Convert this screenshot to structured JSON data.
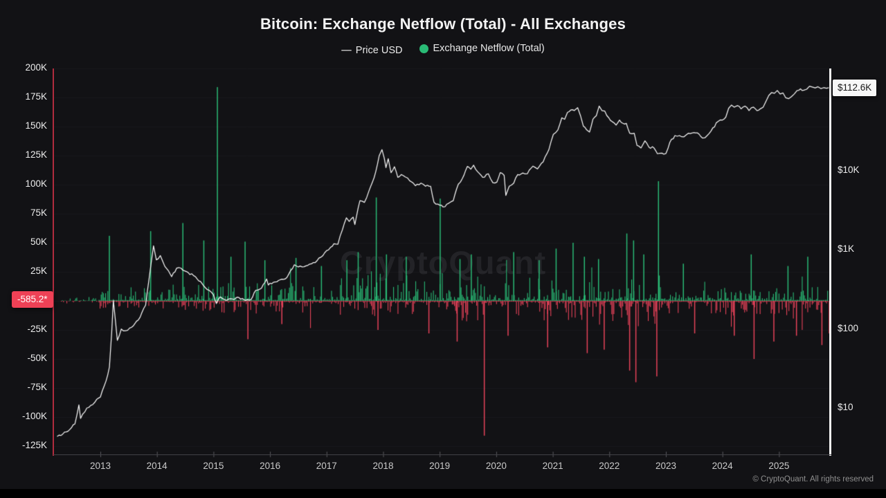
{
  "header": {
    "title": "Bitcoin: Exchange Netflow (Total) - All Exchanges"
  },
  "legend": {
    "price": {
      "marker": "—",
      "label": "Price USD"
    },
    "netflow": {
      "label": "Exchange Netflow (Total)",
      "marker_color": "#2abb76"
    }
  },
  "watermark": "CryptoQuant",
  "footer": {
    "copyright": "© CryptoQuant. All rights reserved"
  },
  "colors": {
    "background": "#121215",
    "netflow_positive": "#2abb76",
    "netflow_negative": "#e8435a",
    "price_line": "#f8f8f8",
    "left_axis_line": "#b12c3e",
    "right_axis_line": "#f1f1f1",
    "badge_netflow_bg": "#ee4156",
    "badge_price_bg": "#f7f7f7"
  },
  "chart_data": {
    "type": "mixed",
    "title": "Bitcoin: Exchange Netflow (Total) - All Exchanges",
    "x_axis": {
      "labels": [
        "2013",
        "2014",
        "2015",
        "2016",
        "2017",
        "2018",
        "2019",
        "2020",
        "2021",
        "2022",
        "2023",
        "2024",
        "2025"
      ],
      "range_years": [
        2012.2,
        2025.95
      ]
    },
    "left_axis": {
      "name": "Exchange Netflow (Total)",
      "scale": "linear",
      "units": "K",
      "range": [
        -137,
        200
      ],
      "current_badge": "-585.2*",
      "ticks": [
        {
          "value": 200,
          "label": "200K"
        },
        {
          "value": 175,
          "label": "175K"
        },
        {
          "value": 150,
          "label": "150K"
        },
        {
          "value": 125,
          "label": "125K"
        },
        {
          "value": 100,
          "label": "100K"
        },
        {
          "value": 75,
          "label": "75K"
        },
        {
          "value": 50,
          "label": "50K"
        },
        {
          "value": 25,
          "label": "25K"
        },
        {
          "value": -25,
          "label": "-25K"
        },
        {
          "value": -50,
          "label": "-50K"
        },
        {
          "value": -75,
          "label": "-75K"
        },
        {
          "value": -100,
          "label": "-100K"
        },
        {
          "value": -125,
          "label": "-125K"
        }
      ]
    },
    "right_axis": {
      "name": "Price USD",
      "scale": "log",
      "current_badge": "$112.6K",
      "ticks": [
        {
          "value": 10000,
          "label": "$10K"
        },
        {
          "value": 1000,
          "label": "$1K"
        },
        {
          "value": 100,
          "label": "$100"
        },
        {
          "value": 10,
          "label": "$10"
        }
      ]
    },
    "series": [
      {
        "name": "Price USD",
        "type": "line",
        "axis": "right",
        "color": "#f8f8f8",
        "points": [
          [
            2012.24,
            4.4
          ],
          [
            2012.4,
            5.0
          ],
          [
            2012.55,
            6.3
          ],
          [
            2012.62,
            11
          ],
          [
            2012.65,
            7.4
          ],
          [
            2012.76,
            10
          ],
          [
            2012.83,
            10.8
          ],
          [
            2012.9,
            11.8
          ],
          [
            2013.0,
            13.8
          ],
          [
            2013.1,
            22
          ],
          [
            2013.16,
            33
          ],
          [
            2013.2,
            90
          ],
          [
            2013.23,
            230
          ],
          [
            2013.27,
            120
          ],
          [
            2013.3,
            72
          ],
          [
            2013.37,
            100
          ],
          [
            2013.45,
            95
          ],
          [
            2013.55,
            105
          ],
          [
            2013.67,
            130
          ],
          [
            2013.8,
            200
          ],
          [
            2013.9,
            700
          ],
          [
            2013.94,
            1130
          ],
          [
            2013.99,
            750
          ],
          [
            2014.06,
            850
          ],
          [
            2014.14,
            620
          ],
          [
            2014.26,
            460
          ],
          [
            2014.35,
            590
          ],
          [
            2014.43,
            585
          ],
          [
            2014.55,
            520
          ],
          [
            2014.68,
            460
          ],
          [
            2014.8,
            375
          ],
          [
            2014.92,
            310
          ],
          [
            2015.0,
            270
          ],
          [
            2015.05,
            210
          ],
          [
            2015.12,
            255
          ],
          [
            2015.2,
            235
          ],
          [
            2015.33,
            240
          ],
          [
            2015.45,
            250
          ],
          [
            2015.57,
            230
          ],
          [
            2015.66,
            235
          ],
          [
            2015.75,
            310
          ],
          [
            2015.85,
            330
          ],
          [
            2015.94,
            430
          ],
          [
            2015.97,
            360
          ],
          [
            2016.06,
            390
          ],
          [
            2016.18,
            420
          ],
          [
            2016.3,
            450
          ],
          [
            2016.43,
            650
          ],
          [
            2016.5,
            610
          ],
          [
            2016.67,
            640
          ],
          [
            2016.83,
            730
          ],
          [
            2017.0,
            980
          ],
          [
            2017.07,
            1080
          ],
          [
            2017.13,
            1200
          ],
          [
            2017.2,
            1180
          ],
          [
            2017.28,
            1800
          ],
          [
            2017.35,
            2550
          ],
          [
            2017.4,
            2300
          ],
          [
            2017.47,
            2600
          ],
          [
            2017.5,
            2100
          ],
          [
            2017.59,
            4200
          ],
          [
            2017.67,
            4000
          ],
          [
            2017.75,
            5600
          ],
          [
            2017.81,
            7200
          ],
          [
            2017.87,
            9800
          ],
          [
            2017.93,
            15500
          ],
          [
            2017.98,
            18600
          ],
          [
            2018.02,
            14500
          ],
          [
            2018.05,
            11000
          ],
          [
            2018.09,
            14300
          ],
          [
            2018.14,
            9500
          ],
          [
            2018.2,
            11300
          ],
          [
            2018.26,
            8300
          ],
          [
            2018.32,
            9000
          ],
          [
            2018.39,
            8400
          ],
          [
            2018.47,
            7500
          ],
          [
            2018.57,
            6500
          ],
          [
            2018.67,
            7000
          ],
          [
            2018.75,
            6400
          ],
          [
            2018.84,
            6400
          ],
          [
            2018.9,
            4000
          ],
          [
            2018.97,
            3800
          ],
          [
            2019.06,
            3500
          ],
          [
            2019.16,
            3900
          ],
          [
            2019.24,
            4200
          ],
          [
            2019.33,
            6800
          ],
          [
            2019.4,
            8000
          ],
          [
            2019.49,
            11400
          ],
          [
            2019.55,
            10500
          ],
          [
            2019.6,
            11800
          ],
          [
            2019.67,
            9800
          ],
          [
            2019.76,
            8300
          ],
          [
            2019.86,
            9200
          ],
          [
            2019.94,
            7100
          ],
          [
            2020.01,
            7200
          ],
          [
            2020.07,
            9500
          ],
          [
            2020.14,
            8800
          ],
          [
            2020.17,
            4900
          ],
          [
            2020.23,
            6400
          ],
          [
            2020.31,
            7000
          ],
          [
            2020.38,
            9000
          ],
          [
            2020.47,
            9400
          ],
          [
            2020.55,
            9200
          ],
          [
            2020.65,
            11500
          ],
          [
            2020.73,
            10600
          ],
          [
            2020.83,
            13000
          ],
          [
            2020.93,
            18500
          ],
          [
            2021.01,
            29000
          ],
          [
            2021.09,
            33000
          ],
          [
            2021.16,
            47000
          ],
          [
            2021.21,
            45000
          ],
          [
            2021.26,
            55000
          ],
          [
            2021.32,
            59000
          ],
          [
            2021.38,
            58000
          ],
          [
            2021.44,
            63000
          ],
          [
            2021.49,
            50000
          ],
          [
            2021.54,
            37000
          ],
          [
            2021.6,
            33000
          ],
          [
            2021.65,
            31000
          ],
          [
            2021.71,
            45000
          ],
          [
            2021.77,
            50000
          ],
          [
            2021.82,
            66000
          ],
          [
            2021.87,
            58000
          ],
          [
            2021.92,
            57000
          ],
          [
            2021.99,
            47000
          ],
          [
            2022.05,
            42000
          ],
          [
            2022.12,
            38000
          ],
          [
            2022.18,
            44000
          ],
          [
            2022.24,
            40000
          ],
          [
            2022.3,
            40000
          ],
          [
            2022.36,
            30000
          ],
          [
            2022.44,
            30000
          ],
          [
            2022.49,
            21000
          ],
          [
            2022.56,
            19500
          ],
          [
            2022.63,
            24000
          ],
          [
            2022.7,
            20000
          ],
          [
            2022.79,
            19500
          ],
          [
            2022.85,
            16500
          ],
          [
            2022.93,
            16800
          ],
          [
            2023.0,
            16600
          ],
          [
            2023.07,
            23000
          ],
          [
            2023.16,
            28000
          ],
          [
            2023.24,
            28000
          ],
          [
            2023.32,
            27000
          ],
          [
            2023.4,
            30000
          ],
          [
            2023.49,
            30500
          ],
          [
            2023.59,
            29000
          ],
          [
            2023.65,
            26000
          ],
          [
            2023.73,
            28000
          ],
          [
            2023.83,
            35000
          ],
          [
            2023.92,
            42000
          ],
          [
            2024.0,
            44000
          ],
          [
            2024.06,
            48000
          ],
          [
            2024.11,
            62000
          ],
          [
            2024.16,
            68000
          ],
          [
            2024.21,
            64000
          ],
          [
            2024.27,
            67000
          ],
          [
            2024.33,
            61000
          ],
          [
            2024.4,
            66000
          ],
          [
            2024.47,
            58000
          ],
          [
            2024.55,
            64000
          ],
          [
            2024.61,
            58000
          ],
          [
            2024.67,
            61000
          ],
          [
            2024.72,
            64000
          ],
          [
            2024.77,
            76000
          ],
          [
            2024.82,
            90000
          ],
          [
            2024.87,
            98000
          ],
          [
            2024.92,
            96000
          ],
          [
            2024.97,
            104000
          ],
          [
            2025.02,
            94000
          ],
          [
            2025.07,
            97000
          ],
          [
            2025.12,
            84000
          ],
          [
            2025.17,
            82000
          ],
          [
            2025.22,
            87000
          ],
          [
            2025.27,
            94000
          ],
          [
            2025.32,
            104000
          ],
          [
            2025.38,
            109000
          ],
          [
            2025.44,
            105000
          ],
          [
            2025.49,
            108000
          ],
          [
            2025.54,
            118000
          ],
          [
            2025.59,
            115000
          ],
          [
            2025.64,
            112000
          ],
          [
            2025.69,
            116000
          ],
          [
            2025.74,
            110000
          ],
          [
            2025.79,
            113000
          ],
          [
            2025.84,
            111000
          ],
          [
            2025.89,
            112600
          ]
        ]
      },
      {
        "name": "Exchange Netflow (Total)",
        "type": "bar",
        "axis": "left",
        "color_positive": "#2abb76",
        "color_negative": "#e8435a",
        "current_value_label": "-585.2*",
        "major_spikes_k": [
          [
            2013.15,
            56
          ],
          [
            2013.88,
            60
          ],
          [
            2014.45,
            67
          ],
          [
            2014.82,
            52
          ],
          [
            2015.06,
            184
          ],
          [
            2015.3,
            38
          ],
          [
            2015.55,
            51
          ],
          [
            2015.6,
            -33
          ],
          [
            2015.9,
            35
          ],
          [
            2016.2,
            -20
          ],
          [
            2016.45,
            37
          ],
          [
            2016.9,
            30
          ],
          [
            2017.35,
            35
          ],
          [
            2017.55,
            42
          ],
          [
            2017.87,
            89
          ],
          [
            2017.9,
            -25
          ],
          [
            2018.05,
            40
          ],
          [
            2018.4,
            38
          ],
          [
            2018.8,
            -28
          ],
          [
            2019.0,
            88
          ],
          [
            2019.3,
            -35
          ],
          [
            2019.35,
            36
          ],
          [
            2019.55,
            40
          ],
          [
            2019.78,
            -116
          ],
          [
            2020.2,
            -30
          ],
          [
            2020.3,
            42
          ],
          [
            2020.75,
            35
          ],
          [
            2020.9,
            -40
          ],
          [
            2021.05,
            45
          ],
          [
            2021.35,
            50
          ],
          [
            2021.55,
            38
          ],
          [
            2021.6,
            -45
          ],
          [
            2021.8,
            36
          ],
          [
            2021.9,
            -42
          ],
          [
            2022.3,
            58
          ],
          [
            2022.35,
            -60
          ],
          [
            2022.42,
            52
          ],
          [
            2022.46,
            -70
          ],
          [
            2022.6,
            40
          ],
          [
            2022.83,
            -65
          ],
          [
            2022.86,
            103
          ],
          [
            2023.3,
            32
          ],
          [
            2023.5,
            -28
          ],
          [
            2024.2,
            -30
          ],
          [
            2024.5,
            40
          ],
          [
            2024.55,
            -50
          ],
          [
            2024.9,
            -35
          ],
          [
            2025.15,
            30
          ],
          [
            2025.3,
            -30
          ],
          [
            2025.5,
            38
          ],
          [
            2025.75,
            -38
          ],
          [
            2025.88,
            -28
          ]
        ],
        "noise_envelope_k": [
          [
            2012.25,
            2012.95,
            3,
            2
          ],
          [
            2012.95,
            2014.2,
            9,
            7
          ],
          [
            2014.2,
            2015.1,
            15,
            9
          ],
          [
            2015.1,
            2016.6,
            16,
            11
          ],
          [
            2016.6,
            2017.6,
            22,
            13
          ],
          [
            2017.6,
            2018.6,
            26,
            15
          ],
          [
            2018.6,
            2019.9,
            22,
            18
          ],
          [
            2019.9,
            2021.4,
            20,
            20
          ],
          [
            2021.4,
            2023.1,
            17,
            22
          ],
          [
            2023.1,
            2024.4,
            12,
            14
          ],
          [
            2024.4,
            2025.95,
            12,
            16
          ]
        ]
      }
    ]
  }
}
